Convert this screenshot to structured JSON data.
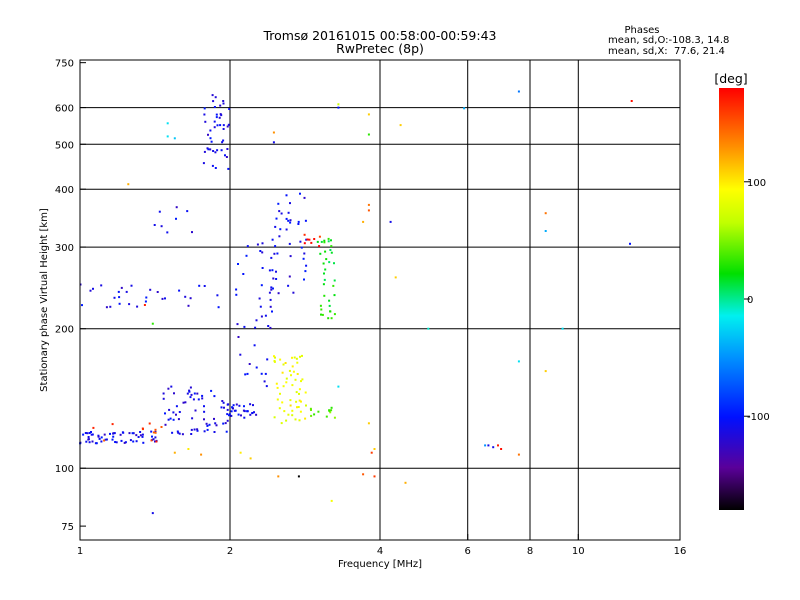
{
  "chart_data": {
    "type": "scatter",
    "title": "Tromsø 20161015 00:58:00-00:59:43",
    "subtitle": "RwPretec (8p)",
    "xlabel": "Frequency [MHz]",
    "ylabel": "Stationary phase Virtual Height [km]",
    "x_scale": "log2",
    "y_scale": "log",
    "xlim": [
      1,
      16
    ],
    "ylim": [
      70,
      760
    ],
    "x_ticks": [
      1,
      2,
      4,
      6,
      8,
      10,
      16
    ],
    "y_ticks": [
      75,
      100,
      200,
      300,
      400,
      500,
      600,
      750
    ],
    "vertical_gridlines": [
      2,
      4,
      6,
      8,
      10
    ],
    "horizontal_gridlines": [
      100,
      200,
      300,
      400,
      500,
      600
    ],
    "phases_box": {
      "heading": "Phases",
      "line_o": "mean, sd,O:-108.3, 14.8",
      "line_x": "mean, sd,X:  77.6, 21.4"
    },
    "colorbar": {
      "label": "[deg]",
      "range": [
        -180,
        180
      ],
      "ticks": [
        100,
        0,
        -100
      ]
    },
    "clusters": [
      {
        "phase": -110,
        "n": 60,
        "x": [
          1.0,
          1.45
        ],
        "y": [
          113,
          120
        ]
      },
      {
        "phase": -110,
        "n": 70,
        "x": [
          1.45,
          2.0
        ],
        "y": [
          118,
          150
        ]
      },
      {
        "phase": -110,
        "n": 25,
        "x": [
          2.0,
          2.3
        ],
        "y": [
          128,
          138
        ]
      },
      {
        "phase": -110,
        "n": 30,
        "x": [
          1.0,
          1.9
        ],
        "y": [
          220,
          250
        ]
      },
      {
        "phase": -110,
        "n": 45,
        "x": [
          1.75,
          2.0
        ],
        "y": [
          440,
          640
        ]
      },
      {
        "phase": -110,
        "n": 40,
        "x": [
          2.05,
          2.45
        ],
        "y": [
          150,
          310
        ]
      },
      {
        "phase": -110,
        "n": 45,
        "x": [
          2.4,
          2.85
        ],
        "y": [
          230,
          400
        ]
      },
      {
        "phase": -110,
        "n": 8,
        "x": [
          1.4,
          1.7
        ],
        "y": [
          320,
          370
        ]
      },
      {
        "phase": 90,
        "n": 55,
        "x": [
          2.45,
          2.85
        ],
        "y": [
          125,
          175
        ]
      },
      {
        "phase": 20,
        "n": 35,
        "x": [
          3.0,
          3.25
        ],
        "y": [
          210,
          320
        ]
      },
      {
        "phase": 40,
        "n": 12,
        "x": [
          2.9,
          3.3
        ],
        "y": [
          128,
          135
        ]
      },
      {
        "phase": 160,
        "n": 12,
        "x": [
          1.05,
          1.5
        ],
        "y": [
          114,
          126
        ]
      },
      {
        "phase": 170,
        "n": 8,
        "x": [
          2.8,
          3.05
        ],
        "y": [
          300,
          320
        ]
      }
    ],
    "points": [
      {
        "x": 1.25,
        "y": 410,
        "phase": 120
      },
      {
        "x": 1.4,
        "y": 80,
        "phase": -110
      },
      {
        "x": 1.5,
        "y": 555,
        "phase": -20
      },
      {
        "x": 1.5,
        "y": 520,
        "phase": -20
      },
      {
        "x": 1.55,
        "y": 515,
        "phase": -30
      },
      {
        "x": 2.45,
        "y": 530,
        "phase": 130
      },
      {
        "x": 2.45,
        "y": 505,
        "phase": -110
      },
      {
        "x": 3.3,
        "y": 610,
        "phase": 70
      },
      {
        "x": 3.3,
        "y": 600,
        "phase": -100
      },
      {
        "x": 3.8,
        "y": 580,
        "phase": 110
      },
      {
        "x": 3.8,
        "y": 525,
        "phase": 30
      },
      {
        "x": 4.4,
        "y": 550,
        "phase": 110
      },
      {
        "x": 3.8,
        "y": 370,
        "phase": 140
      },
      {
        "x": 3.8,
        "y": 360,
        "phase": 150
      },
      {
        "x": 4.2,
        "y": 340,
        "phase": -110
      },
      {
        "x": 3.7,
        "y": 340,
        "phase": 120
      },
      {
        "x": 4.3,
        "y": 258,
        "phase": 110
      },
      {
        "x": 5.0,
        "y": 200,
        "phase": -10
      },
      {
        "x": 5.9,
        "y": 598,
        "phase": -40
      },
      {
        "x": 7.6,
        "y": 650,
        "phase": -60
      },
      {
        "x": 12.8,
        "y": 620,
        "phase": 175
      },
      {
        "x": 12.7,
        "y": 305,
        "phase": -100
      },
      {
        "x": 8.6,
        "y": 355,
        "phase": 140
      },
      {
        "x": 8.6,
        "y": 325,
        "phase": -40
      },
      {
        "x": 9.3,
        "y": 200,
        "phase": -20
      },
      {
        "x": 7.6,
        "y": 170,
        "phase": -20
      },
      {
        "x": 8.6,
        "y": 162,
        "phase": 110
      },
      {
        "x": 6.5,
        "y": 112,
        "phase": -50
      },
      {
        "x": 6.6,
        "y": 112,
        "phase": -110
      },
      {
        "x": 6.75,
        "y": 111,
        "phase": -110
      },
      {
        "x": 6.9,
        "y": 112,
        "phase": 170
      },
      {
        "x": 7.0,
        "y": 110,
        "phase": 175
      },
      {
        "x": 7.6,
        "y": 107,
        "phase": 140
      },
      {
        "x": 3.8,
        "y": 125,
        "phase": 110
      },
      {
        "x": 3.9,
        "y": 110,
        "phase": 110
      },
      {
        "x": 3.85,
        "y": 108,
        "phase": 160
      },
      {
        "x": 3.3,
        "y": 150,
        "phase": -20
      },
      {
        "x": 4.5,
        "y": 93,
        "phase": 120
      },
      {
        "x": 2.5,
        "y": 96,
        "phase": 130
      },
      {
        "x": 2.75,
        "y": 96,
        "phase": -180
      },
      {
        "x": 3.2,
        "y": 85,
        "phase": 90
      },
      {
        "x": 3.7,
        "y": 97,
        "phase": 150
      },
      {
        "x": 3.9,
        "y": 96,
        "phase": 160
      },
      {
        "x": 2.1,
        "y": 108,
        "phase": 100
      },
      {
        "x": 2.2,
        "y": 105,
        "phase": 110
      },
      {
        "x": 1.55,
        "y": 108,
        "phase": 120
      },
      {
        "x": 1.65,
        "y": 110,
        "phase": 100
      },
      {
        "x": 1.75,
        "y": 107,
        "phase": 130
      },
      {
        "x": 1.4,
        "y": 205,
        "phase": 30
      },
      {
        "x": 1.35,
        "y": 225,
        "phase": 170
      }
    ]
  }
}
